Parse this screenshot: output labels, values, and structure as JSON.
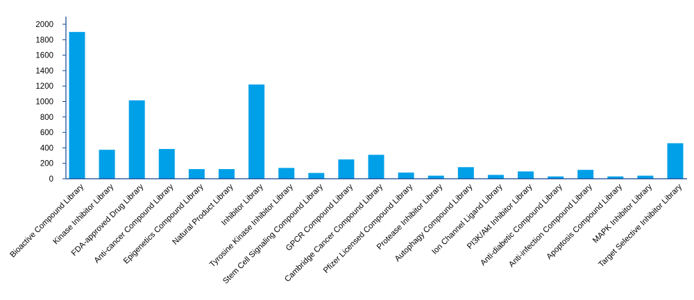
{
  "chart_data": {
    "type": "bar",
    "title": "",
    "xlabel": "",
    "ylabel": "",
    "ylim": [
      0,
      2000
    ],
    "yticks": [
      0,
      200,
      400,
      600,
      800,
      1000,
      1200,
      1400,
      1600,
      1800,
      2000
    ],
    "grid": false,
    "legend": "none",
    "bar_color": "#00a0e9",
    "axis_color": "#0a3f8f",
    "categories": [
      "Bioactive Compound Library",
      "Kinase Inhibitor Library",
      "FDA-approved Drug Library",
      "Anti-cancer Compound Library",
      "Epigenetics Compound Library",
      "Natural Product Library",
      "Inhibitor Library",
      "Tyrosine Kinase Inhibitor Library",
      "Stem Cell Signaling Compound Library",
      "GPCR Compound Library",
      "Cambridge Cancer Compound Library",
      "Pfizer Licensed Compound Library",
      "Protease Inhibitor Library",
      "Autophagy Compound Library",
      "Ion Channel Ligand Library",
      "PI3K/Akt Inhibitor Library",
      "Anti-diabetic Compound Library",
      "Anti-infection Compound Library",
      "Apoptosis Compound Library",
      "MAPK Inhibitor Library",
      "Target Selective Inhibitor Library"
    ],
    "values": [
      1900,
      375,
      1015,
      385,
      125,
      125,
      1220,
      140,
      75,
      250,
      310,
      80,
      40,
      150,
      50,
      95,
      30,
      115,
      30,
      40,
      460
    ]
  }
}
